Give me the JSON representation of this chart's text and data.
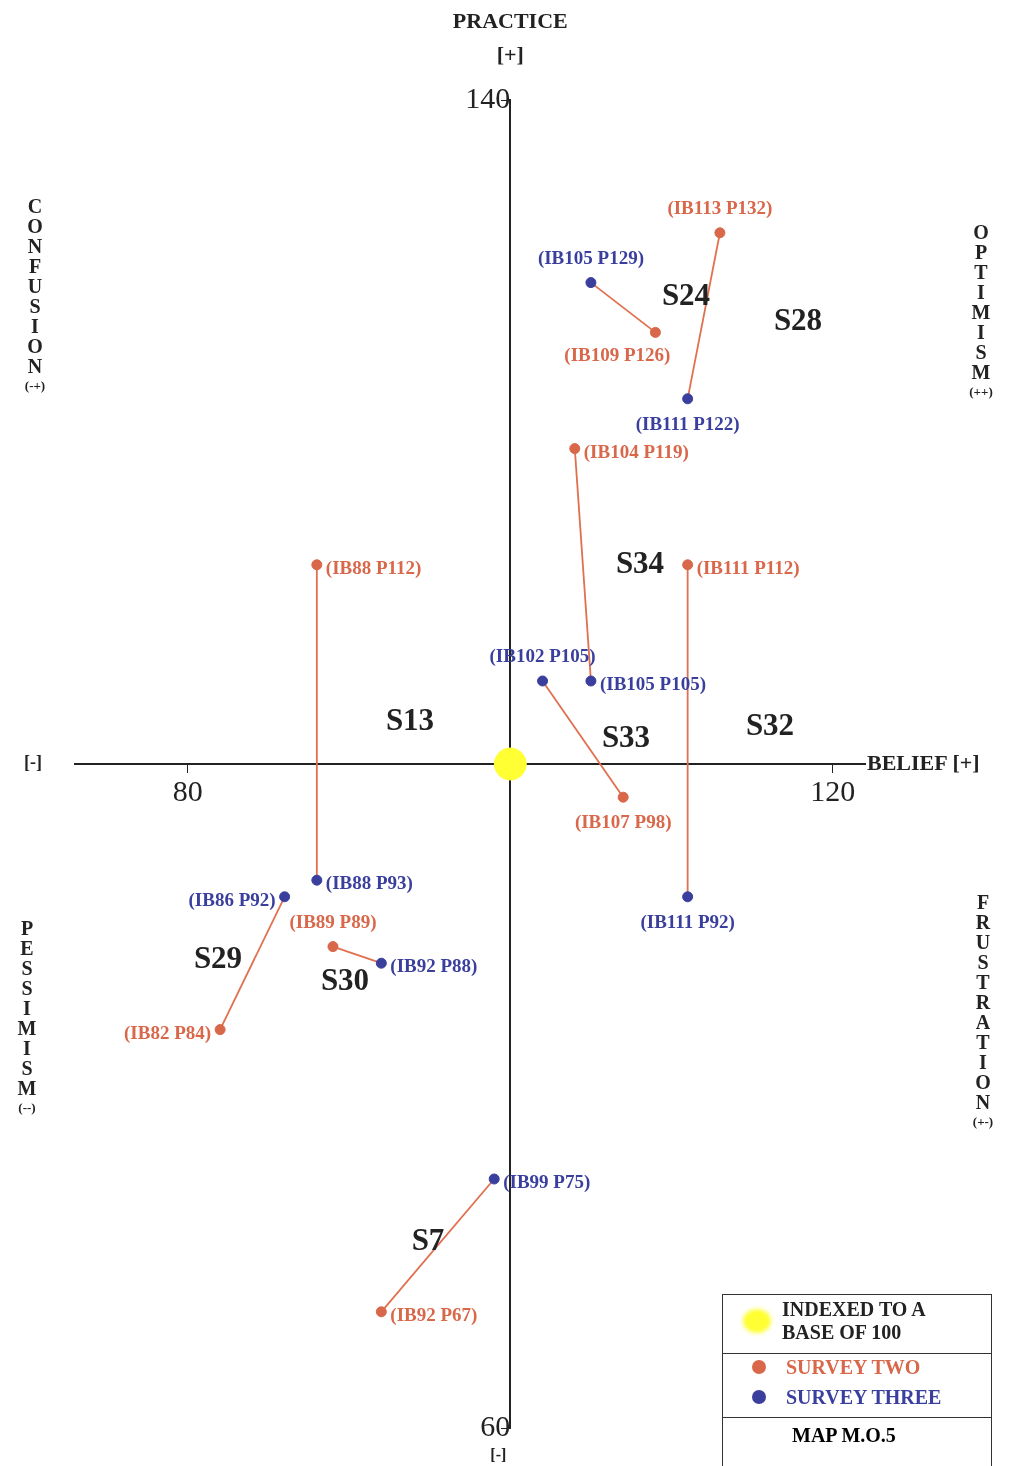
{
  "chart_data": {
    "type": "scatter",
    "xlabel": "BELIEF [+]",
    "ylabel": "PRACTICE [+]",
    "xlim": [
      73,
      122
    ],
    "ylim": [
      60,
      140
    ],
    "xticks": [
      80,
      120
    ],
    "yticks": [
      60,
      140
    ],
    "grid": false,
    "legend": "bottom right",
    "series": [
      {
        "name": "INDEXED TO A BASE OF 100",
        "marker": "circle",
        "color": "#ffff33",
        "x": [
          100
        ],
        "values": [
          100
        ]
      },
      {
        "name": "SURVEY TWO",
        "marker": "circle",
        "color": "#d9674a",
        "x": [
          109,
          113,
          104,
          88,
          111,
          107,
          82,
          89,
          92
        ],
        "values": [
          126,
          132,
          119,
          112,
          112,
          98,
          84,
          89,
          67
        ],
        "value_labels": [
          "(IB109 P126)",
          "(IB113 P132)",
          "(IB104 P119)",
          "(IB88 P112)",
          "(IB111 P112)",
          "(IB107 P98)",
          "(IB82 P84)",
          "(IB89 P89)",
          "(IB92 P67)"
        ]
      },
      {
        "name": "SURVEY THREE",
        "marker": "circle",
        "color": "#3a3f9e",
        "x": [
          105,
          111,
          105,
          88,
          111,
          102,
          86,
          92,
          99
        ],
        "values": [
          129,
          122,
          105,
          93,
          92,
          105,
          92,
          88,
          75
        ],
        "value_labels": [
          "(IB105 P129)",
          "(IB111 P122)",
          "(IB105 P105)",
          "(IB88 P93)",
          "(IB111 P92)",
          "(IB102 P105)",
          "(IB86 P92)",
          "(IB92 P88)",
          "(IB99 P75)"
        ]
      },
      {
        "type": "line",
        "marker": "none",
        "color": "#e0704f",
        "x": [
          105,
          109
        ],
        "values": [
          129,
          126
        ]
      },
      {
        "type": "line",
        "marker": "none",
        "color": "#e0704f",
        "x": [
          113,
          111
        ],
        "values": [
          132,
          122
        ]
      },
      {
        "type": "line",
        "marker": "none",
        "color": "#e0704f",
        "x": [
          104,
          105
        ],
        "values": [
          119,
          105
        ]
      },
      {
        "type": "line",
        "marker": "none",
        "color": "#e0704f",
        "x": [
          88,
          88
        ],
        "values": [
          112,
          93
        ]
      },
      {
        "type": "line",
        "marker": "none",
        "color": "#e0704f",
        "x": [
          111,
          111
        ],
        "values": [
          112,
          92
        ]
      },
      {
        "type": "line",
        "marker": "none",
        "color": "#e0704f",
        "x": [
          102,
          107
        ],
        "values": [
          105,
          98
        ]
      },
      {
        "type": "line",
        "marker": "none",
        "color": "#e0704f",
        "x": [
          86,
          82
        ],
        "values": [
          92,
          84
        ]
      },
      {
        "type": "line",
        "marker": "none",
        "color": "#e0704f",
        "x": [
          89,
          92
        ],
        "values": [
          89,
          88
        ]
      },
      {
        "type": "line",
        "marker": "none",
        "color": "#e0704f",
        "x": [
          99,
          92
        ],
        "values": [
          75,
          67
        ]
      }
    ],
    "annotations": [
      "[-]",
      "[-]",
      "CONFUSION (-+)",
      "OPTIMISM (++)",
      "PESSIMISM (--)",
      "FRUSTRATION (+-)",
      "MAP M.O.5",
      "S24",
      "S28",
      "S34",
      "S13",
      "S33",
      "S32",
      "S29",
      "S30",
      "S7"
    ]
  }
}
